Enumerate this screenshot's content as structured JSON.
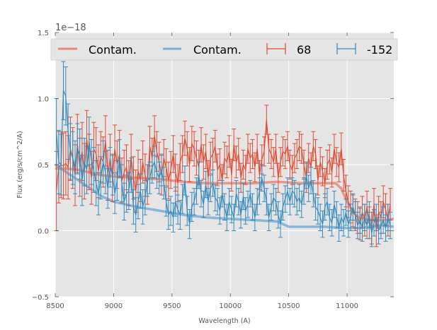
{
  "chart_data": {
    "type": "line",
    "title": "",
    "xlabel": "Wavelength (A)",
    "ylabel": "Flux (erg/s/cm^2/A)",
    "y_offset_text": "1e−18",
    "xlim": [
      8500,
      11400
    ],
    "ylim": [
      -0.5,
      1.5
    ],
    "x_ticks": [
      8500,
      9000,
      9500,
      10000,
      10500,
      11000
    ],
    "x_tick_labels": [
      "8500",
      "9000",
      "9500",
      "10000",
      "10500",
      "11000"
    ],
    "y_ticks": [
      -0.5,
      0.0,
      0.5,
      1.0,
      1.5
    ],
    "y_tick_labels": [
      "−0.5",
      "0.0",
      "0.5",
      "1.0",
      "1.5"
    ],
    "grid": true,
    "legend_placement": "top",
    "legend": [
      {
        "label": "Contam.",
        "kind": "line",
        "color": "#e8887a"
      },
      {
        "label": "Contam.",
        "kind": "line",
        "color": "#79aed6"
      },
      {
        "label": "68",
        "kind": "errorbar",
        "color": "#e24a33"
      },
      {
        "label": "-152",
        "kind": "errorbar",
        "color": "#348abd"
      }
    ],
    "colors": {
      "red": "#e24a33",
      "blue": "#348abd",
      "red_contam": "#e8887a",
      "blue_contam": "#79aed6",
      "background": "#e5e5e5",
      "grid": "#ffffff"
    },
    "series": [
      {
        "name": "68",
        "kind": "errorbar",
        "x": [
          8510,
          8530,
          8550,
          8570,
          8590,
          8610,
          8630,
          8650,
          8670,
          8690,
          8710,
          8730,
          8750,
          8770,
          8790,
          8810,
          8830,
          8850,
          8870,
          8890,
          8910,
          8930,
          8950,
          8970,
          8990,
          9010,
          9030,
          9050,
          9070,
          9090,
          9110,
          9130,
          9150,
          9170,
          9190,
          9210,
          9230,
          9250,
          9270,
          9290,
          9310,
          9330,
          9350,
          9370,
          9390,
          9410,
          9430,
          9450,
          9470,
          9490,
          9510,
          9530,
          9550,
          9570,
          9590,
          9610,
          9630,
          9650,
          9670,
          9690,
          9710,
          9730,
          9750,
          9770,
          9790,
          9810,
          9830,
          9850,
          9870,
          9890,
          9910,
          9930,
          9950,
          9970,
          9990,
          10010,
          10030,
          10050,
          10070,
          10090,
          10110,
          10130,
          10150,
          10170,
          10190,
          10210,
          10230,
          10250,
          10270,
          10290,
          10310,
          10330,
          10350,
          10370,
          10390,
          10410,
          10430,
          10450,
          10470,
          10490,
          10510,
          10530,
          10550,
          10570,
          10590,
          10610,
          10630,
          10650,
          10670,
          10690,
          10710,
          10730,
          10750,
          10770,
          10790,
          10810,
          10830,
          10850,
          10870,
          10890,
          10910,
          10930,
          10950,
          10970,
          10990,
          11010,
          11030,
          11050,
          11070,
          11090,
          11110,
          11130,
          11150,
          11170,
          11190,
          11210,
          11230,
          11250,
          11270,
          11290,
          11310,
          11330,
          11350,
          11370
        ],
        "y": [
          0.3,
          0.48,
          0.5,
          0.49,
          0.51,
          0.48,
          0.62,
          0.55,
          0.42,
          0.66,
          0.48,
          0.6,
          0.45,
          0.7,
          0.52,
          0.4,
          0.62,
          0.58,
          0.45,
          0.56,
          0.52,
          0.68,
          0.42,
          0.55,
          0.4,
          0.62,
          0.5,
          0.58,
          0.38,
          0.44,
          0.48,
          0.36,
          0.56,
          0.4,
          0.3,
          0.45,
          0.38,
          0.52,
          0.42,
          0.35,
          0.64,
          0.55,
          0.72,
          0.6,
          0.52,
          0.42,
          0.55,
          0.48,
          0.38,
          0.46,
          0.58,
          0.44,
          0.36,
          0.52,
          0.58,
          0.7,
          0.62,
          0.5,
          0.66,
          0.62,
          0.55,
          0.48,
          0.65,
          0.52,
          0.6,
          0.4,
          0.55,
          0.58,
          0.64,
          0.46,
          0.5,
          0.38,
          0.55,
          0.52,
          0.6,
          0.42,
          0.65,
          0.52,
          0.58,
          0.4,
          0.5,
          0.46,
          0.62,
          0.55,
          0.58,
          0.48,
          0.62,
          0.42,
          0.54,
          0.6,
          0.84,
          0.62,
          0.58,
          0.52,
          0.62,
          0.4,
          0.52,
          0.6,
          0.58,
          0.64,
          0.5,
          0.46,
          0.55,
          0.58,
          0.64,
          0.62,
          0.5,
          0.4,
          0.55,
          0.48,
          0.64,
          0.58,
          0.38,
          0.52,
          0.45,
          0.36,
          0.5,
          0.54,
          0.44,
          0.62,
          0.52,
          0.48,
          0.62,
          0.42,
          0.3,
          0.22,
          0.18,
          0.15,
          0.12,
          0.1,
          0.05,
          0.14,
          0.08,
          0.18,
          0.06,
          0.02,
          0.2,
          0.0,
          0.14,
          0.1,
          0.22,
          0.16,
          0.08,
          0.2
        ],
        "err": [
          0.3,
          0.27,
          0.25,
          0.25,
          0.24,
          0.24,
          0.24,
          0.23,
          0.23,
          0.22,
          0.22,
          0.22,
          0.21,
          0.21,
          0.21,
          0.2,
          0.2,
          0.2,
          0.2,
          0.19,
          0.19,
          0.19,
          0.19,
          0.18,
          0.18,
          0.18,
          0.18,
          0.18,
          0.17,
          0.17,
          0.17,
          0.17,
          0.17,
          0.16,
          0.16,
          0.16,
          0.16,
          0.16,
          0.16,
          0.15,
          0.15,
          0.15,
          0.15,
          0.15,
          0.15,
          0.15,
          0.14,
          0.14,
          0.14,
          0.14,
          0.14,
          0.14,
          0.14,
          0.14,
          0.14,
          0.13,
          0.13,
          0.13,
          0.13,
          0.13,
          0.13,
          0.13,
          0.13,
          0.13,
          0.13,
          0.13,
          0.12,
          0.12,
          0.12,
          0.12,
          0.12,
          0.12,
          0.12,
          0.12,
          0.12,
          0.12,
          0.12,
          0.12,
          0.12,
          0.11,
          0.11,
          0.11,
          0.11,
          0.11,
          0.11,
          0.11,
          0.11,
          0.11,
          0.11,
          0.11,
          0.11,
          0.11,
          0.11,
          0.11,
          0.11,
          0.11,
          0.11,
          0.11,
          0.11,
          0.11,
          0.11,
          0.11,
          0.11,
          0.11,
          0.11,
          0.11,
          0.11,
          0.11,
          0.11,
          0.11,
          0.11,
          0.11,
          0.11,
          0.11,
          0.11,
          0.11,
          0.11,
          0.11,
          0.11,
          0.11,
          0.11,
          0.11,
          0.12,
          0.12,
          0.12,
          0.12,
          0.12,
          0.12,
          0.12,
          0.12,
          0.12,
          0.12,
          0.12,
          0.12,
          0.12,
          0.12,
          0.12,
          0.12,
          0.12,
          0.12,
          0.12,
          0.12,
          0.12,
          0.12
        ]
      },
      {
        "name": "-152",
        "kind": "errorbar",
        "x": [
          8510,
          8530,
          8550,
          8570,
          8590,
          8610,
          8630,
          8650,
          8670,
          8690,
          8710,
          8730,
          8750,
          8770,
          8790,
          8810,
          8830,
          8850,
          8870,
          8890,
          8910,
          8930,
          8950,
          8970,
          8990,
          9010,
          9030,
          9050,
          9070,
          9090,
          9110,
          9130,
          9150,
          9170,
          9190,
          9210,
          9230,
          9250,
          9270,
          9290,
          9310,
          9330,
          9350,
          9370,
          9390,
          9410,
          9430,
          9450,
          9470,
          9490,
          9510,
          9530,
          9550,
          9570,
          9590,
          9610,
          9630,
          9650,
          9670,
          9690,
          9710,
          9730,
          9750,
          9770,
          9790,
          9810,
          9830,
          9850,
          9870,
          9890,
          9910,
          9930,
          9950,
          9970,
          9990,
          10010,
          10030,
          10050,
          10070,
          10090,
          10110,
          10130,
          10150,
          10170,
          10190,
          10210,
          10230,
          10250,
          10270,
          10290,
          10310,
          10330,
          10350,
          10370,
          10390,
          10410,
          10430,
          10450,
          10470,
          10490,
          10510,
          10530,
          10550,
          10570,
          10590,
          10610,
          10630,
          10650,
          10670,
          10690,
          10710,
          10730,
          10750,
          10770,
          10790,
          10810,
          10830,
          10850,
          10870,
          10890,
          10910,
          10930,
          10950,
          10970,
          10990,
          11010,
          11030,
          11050,
          11070,
          11090,
          11110,
          11130,
          11150,
          11170,
          11190,
          11210,
          11230,
          11250,
          11270,
          11290,
          11310,
          11330,
          11350,
          11370
        ],
        "y": [
          0.75,
          0.52,
          0.5,
          1.06,
          1.02,
          0.75,
          0.6,
          0.55,
          0.48,
          0.62,
          0.58,
          0.38,
          0.52,
          0.46,
          0.68,
          0.52,
          0.46,
          0.36,
          0.28,
          0.4,
          0.52,
          0.44,
          0.32,
          0.48,
          0.42,
          0.28,
          0.38,
          0.55,
          0.36,
          0.22,
          0.28,
          0.3,
          0.42,
          0.18,
          0.12,
          0.22,
          0.3,
          0.18,
          0.25,
          0.38,
          0.4,
          0.48,
          0.52,
          0.44,
          0.4,
          0.46,
          0.36,
          0.22,
          0.12,
          0.15,
          0.1,
          0.22,
          0.16,
          0.12,
          0.24,
          0.38,
          0.15,
          0.05,
          0.18,
          0.22,
          0.3,
          0.42,
          0.28,
          0.2,
          0.35,
          0.22,
          0.32,
          0.36,
          0.25,
          0.22,
          0.15,
          0.28,
          0.18,
          0.1,
          0.22,
          0.16,
          0.1,
          0.28,
          0.22,
          0.12,
          0.26,
          0.15,
          0.2,
          0.28,
          0.18,
          0.1,
          0.22,
          0.3,
          0.4,
          0.32,
          0.22,
          0.1,
          0.18,
          0.25,
          0.22,
          0.12,
          0.05,
          0.18,
          0.24,
          0.3,
          0.22,
          0.3,
          0.28,
          0.22,
          0.25,
          0.2,
          0.3,
          0.42,
          0.32,
          0.38,
          0.28,
          0.18,
          0.15,
          0.1,
          0.05,
          0.18,
          0.22,
          0.1,
          0.06,
          0.2,
          0.12,
          0.02,
          0.1,
          0.06,
          0.14,
          0.05,
          0.1,
          0.18,
          0.12,
          0.04,
          0.08,
          0.02,
          0.1,
          0.04,
          0.12,
          -0.02,
          0.06,
          0.1,
          0.0,
          0.04,
          0.08,
          0.02,
          0.1,
          0.04
        ],
        "err": [
          0.25,
          0.24,
          0.23,
          0.22,
          0.22,
          0.21,
          0.21,
          0.2,
          0.2,
          0.19,
          0.19,
          0.19,
          0.18,
          0.18,
          0.18,
          0.17,
          0.17,
          0.17,
          0.16,
          0.16,
          0.16,
          0.16,
          0.15,
          0.15,
          0.15,
          0.15,
          0.15,
          0.14,
          0.14,
          0.14,
          0.14,
          0.14,
          0.13,
          0.13,
          0.13,
          0.13,
          0.13,
          0.13,
          0.13,
          0.12,
          0.12,
          0.12,
          0.12,
          0.12,
          0.12,
          0.12,
          0.12,
          0.11,
          0.11,
          0.11,
          0.11,
          0.11,
          0.11,
          0.11,
          0.11,
          0.11,
          0.11,
          0.11,
          0.11,
          0.1,
          0.1,
          0.1,
          0.1,
          0.1,
          0.1,
          0.1,
          0.1,
          0.1,
          0.1,
          0.1,
          0.1,
          0.1,
          0.1,
          0.1,
          0.1,
          0.1,
          0.1,
          0.1,
          0.1,
          0.1,
          0.1,
          0.1,
          0.1,
          0.1,
          0.1,
          0.1,
          0.1,
          0.1,
          0.1,
          0.1,
          0.1,
          0.1,
          0.1,
          0.1,
          0.1,
          0.1,
          0.1,
          0.1,
          0.1,
          0.1,
          0.1,
          0.1,
          0.1,
          0.1,
          0.1,
          0.1,
          0.1,
          0.1,
          0.1,
          0.1,
          0.1,
          0.1,
          0.1,
          0.1,
          0.1,
          0.1,
          0.1,
          0.1,
          0.1,
          0.1,
          0.1,
          0.1,
          0.1,
          0.1,
          0.1,
          0.1,
          0.1,
          0.1,
          0.1,
          0.1,
          0.1,
          0.1,
          0.1,
          0.1,
          0.1,
          0.1,
          0.1,
          0.1,
          0.1,
          0.1,
          0.1,
          0.1,
          0.1,
          0.1
        ]
      },
      {
        "name": "Contam. (68)",
        "kind": "line",
        "x": [
          8500,
          8600,
          8700,
          8800,
          8900,
          9000,
          9200,
          9400,
          9600,
          9800,
          10000,
          10200,
          10400,
          10600,
          10800,
          10900,
          10950,
          11000,
          11050,
          11100,
          11200,
          11300,
          11400
        ],
        "y": [
          0.47,
          0.47,
          0.46,
          0.44,
          0.42,
          0.41,
          0.4,
          0.39,
          0.37,
          0.36,
          0.36,
          0.36,
          0.37,
          0.36,
          0.36,
          0.36,
          0.32,
          0.22,
          0.14,
          0.1,
          0.08,
          0.08,
          0.09
        ]
      },
      {
        "name": "Contam. (-152)",
        "kind": "line",
        "x": [
          8500,
          8600,
          8700,
          8800,
          8900,
          9000,
          9200,
          9400,
          9600,
          9800,
          10000,
          10200,
          10400,
          10450,
          10500,
          10600,
          10800,
          11000,
          11100,
          11200,
          11300,
          11400
        ],
        "y": [
          0.5,
          0.44,
          0.38,
          0.32,
          0.26,
          0.22,
          0.18,
          0.15,
          0.12,
          0.1,
          0.09,
          0.08,
          0.07,
          0.05,
          0.03,
          0.03,
          0.03,
          0.02,
          0.02,
          0.03,
          0.04,
          0.03
        ]
      }
    ]
  }
}
